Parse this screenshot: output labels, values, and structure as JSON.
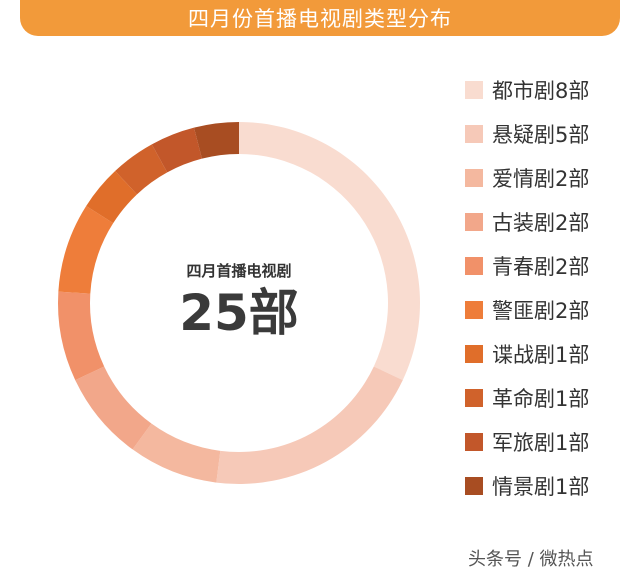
{
  "title": "四月份首播电视剧类型分布",
  "center": {
    "label": "四月首播电视剧",
    "total": "25部"
  },
  "watermark": "头条号 / 微热点",
  "chart_data": {
    "type": "pie",
    "title": "四月份首播电视剧类型分布",
    "total": 25,
    "unit": "部",
    "legend_position": "right",
    "categories": [
      "都市剧",
      "悬疑剧",
      "爱情剧",
      "古装剧",
      "青春剧",
      "警匪剧",
      "谍战剧",
      "革命剧",
      "军旅剧",
      "情景剧"
    ],
    "values": [
      8,
      5,
      2,
      2,
      2,
      2,
      1,
      1,
      1,
      1
    ],
    "labels": [
      "都市剧8部",
      "悬疑剧5部",
      "爱情剧2部",
      "古装剧2部",
      "青春剧2部",
      "警匪剧2部",
      "谍战剧1部",
      "革命剧1部",
      "军旅剧1部",
      "情景剧1部"
    ],
    "colors": [
      "#f9dcd0",
      "#f6c9b8",
      "#f4b89f",
      "#f2a78a",
      "#f19169",
      "#ee7d3a",
      "#e06e2a",
      "#d0622b",
      "#c2572a",
      "#a84d22"
    ]
  }
}
